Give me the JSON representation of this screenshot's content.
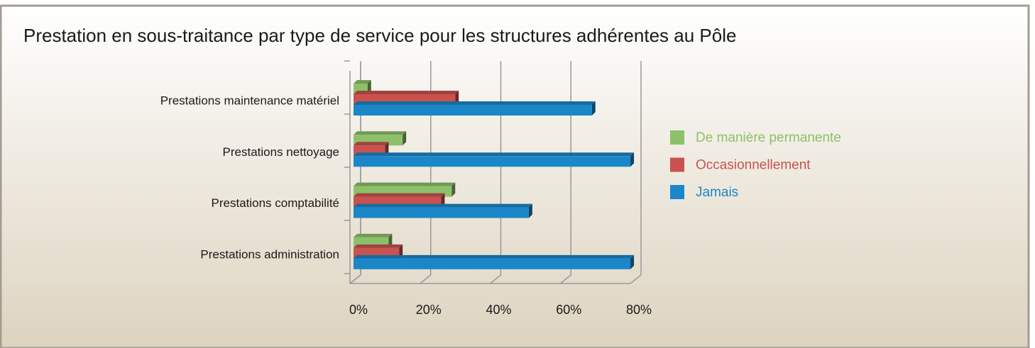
{
  "chart_data": {
    "type": "bar",
    "orientation": "horizontal",
    "title": "Prestation en sous-traitance par type de service pour les structures adhérentes au Pôle",
    "categories": [
      "Prestations maintenance matériel",
      "Prestations nettoyage",
      "Prestations comptabilité",
      "Prestations administration"
    ],
    "series": [
      {
        "name": "De manière permanente",
        "color": "#8dc06a",
        "values": [
          4,
          14,
          28,
          10
        ]
      },
      {
        "name": "Occasionnellement",
        "color": "#c9524f",
        "values": [
          29,
          9,
          25,
          13
        ]
      },
      {
        "name": "Jamais",
        "color": "#1b87c9",
        "values": [
          68,
          79,
          50,
          79
        ]
      }
    ],
    "xlim": [
      0,
      80
    ],
    "xticks": [
      {
        "value": 0,
        "label": "0%"
      },
      {
        "value": 20,
        "label": "20%"
      },
      {
        "value": 40,
        "label": "40%"
      },
      {
        "value": 60,
        "label": "60%"
      },
      {
        "value": 80,
        "label": "80%"
      }
    ],
    "grid": true,
    "legend": "right"
  }
}
